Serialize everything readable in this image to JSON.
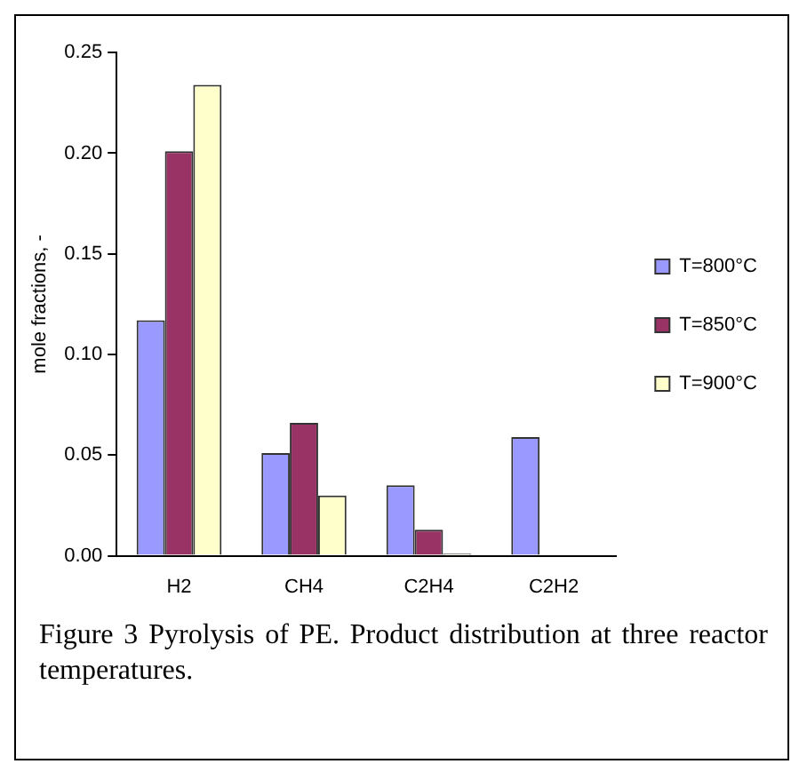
{
  "chart_data": {
    "type": "bar",
    "ylabel": "mole fractions, -",
    "categories": [
      "H2",
      "CH4",
      "C2H4",
      "C2H2"
    ],
    "series": [
      {
        "name": "T=800°C",
        "color": "#9999ff",
        "values": [
          0.117,
          0.051,
          0.035,
          0.059
        ]
      },
      {
        "name": "T=850°C",
        "color": "#993366",
        "values": [
          0.201,
          0.066,
          0.013,
          0
        ]
      },
      {
        "name": "T=900°C",
        "color": "#ffffcc",
        "values": [
          0.234,
          0.03,
          0.001,
          0
        ]
      }
    ],
    "ylim": [
      0,
      0.25
    ],
    "yticks": [
      {
        "value": 0,
        "label": "0.00"
      },
      {
        "value": 0.05,
        "label": "0.05"
      },
      {
        "value": 0.1,
        "label": "0.10"
      },
      {
        "value": 0.15,
        "label": "0.15"
      },
      {
        "value": 0.2,
        "label": "0.20"
      },
      {
        "value": 0.25,
        "label": "0.25"
      }
    ],
    "grid": false,
    "legend": "right",
    "annotations": [
      "Figure 3 Pyrolysis of PE. Product distribution at three reactor temperatures."
    ]
  }
}
